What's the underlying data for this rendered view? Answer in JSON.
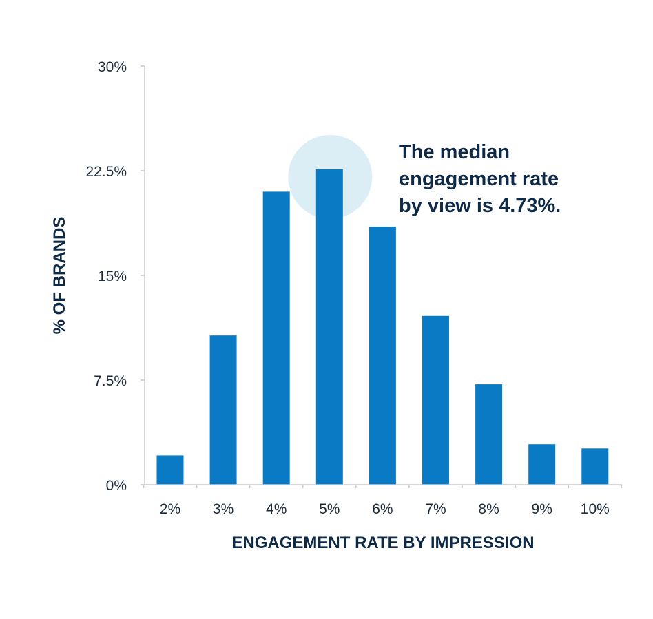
{
  "chart_data": {
    "type": "bar",
    "categories": [
      "2%",
      "3%",
      "4%",
      "5%",
      "6%",
      "7%",
      "8%",
      "9%",
      "10%"
    ],
    "values": [
      2.1,
      10.7,
      21.0,
      22.6,
      18.5,
      12.1,
      7.2,
      2.9,
      2.6
    ],
    "title": "",
    "xlabel": "ENGAGEMENT RATE BY IMPRESSION",
    "ylabel": "% OF BRANDS",
    "ylim": [
      0,
      30
    ],
    "yticks": [
      "0%",
      "7.5%",
      "15%",
      "22.5%",
      "30%"
    ],
    "ytick_values": [
      0,
      7.5,
      15,
      22.5,
      30
    ],
    "grid": false,
    "annotation": {
      "lines": [
        "The median",
        "engagement rate",
        "by view is 4.73%."
      ],
      "highlight_category": "5%"
    },
    "colors": {
      "bar": "#0477c2",
      "highlight": "#dceef5",
      "axis": "#c9c9c9",
      "text": "#0e2a47"
    }
  }
}
